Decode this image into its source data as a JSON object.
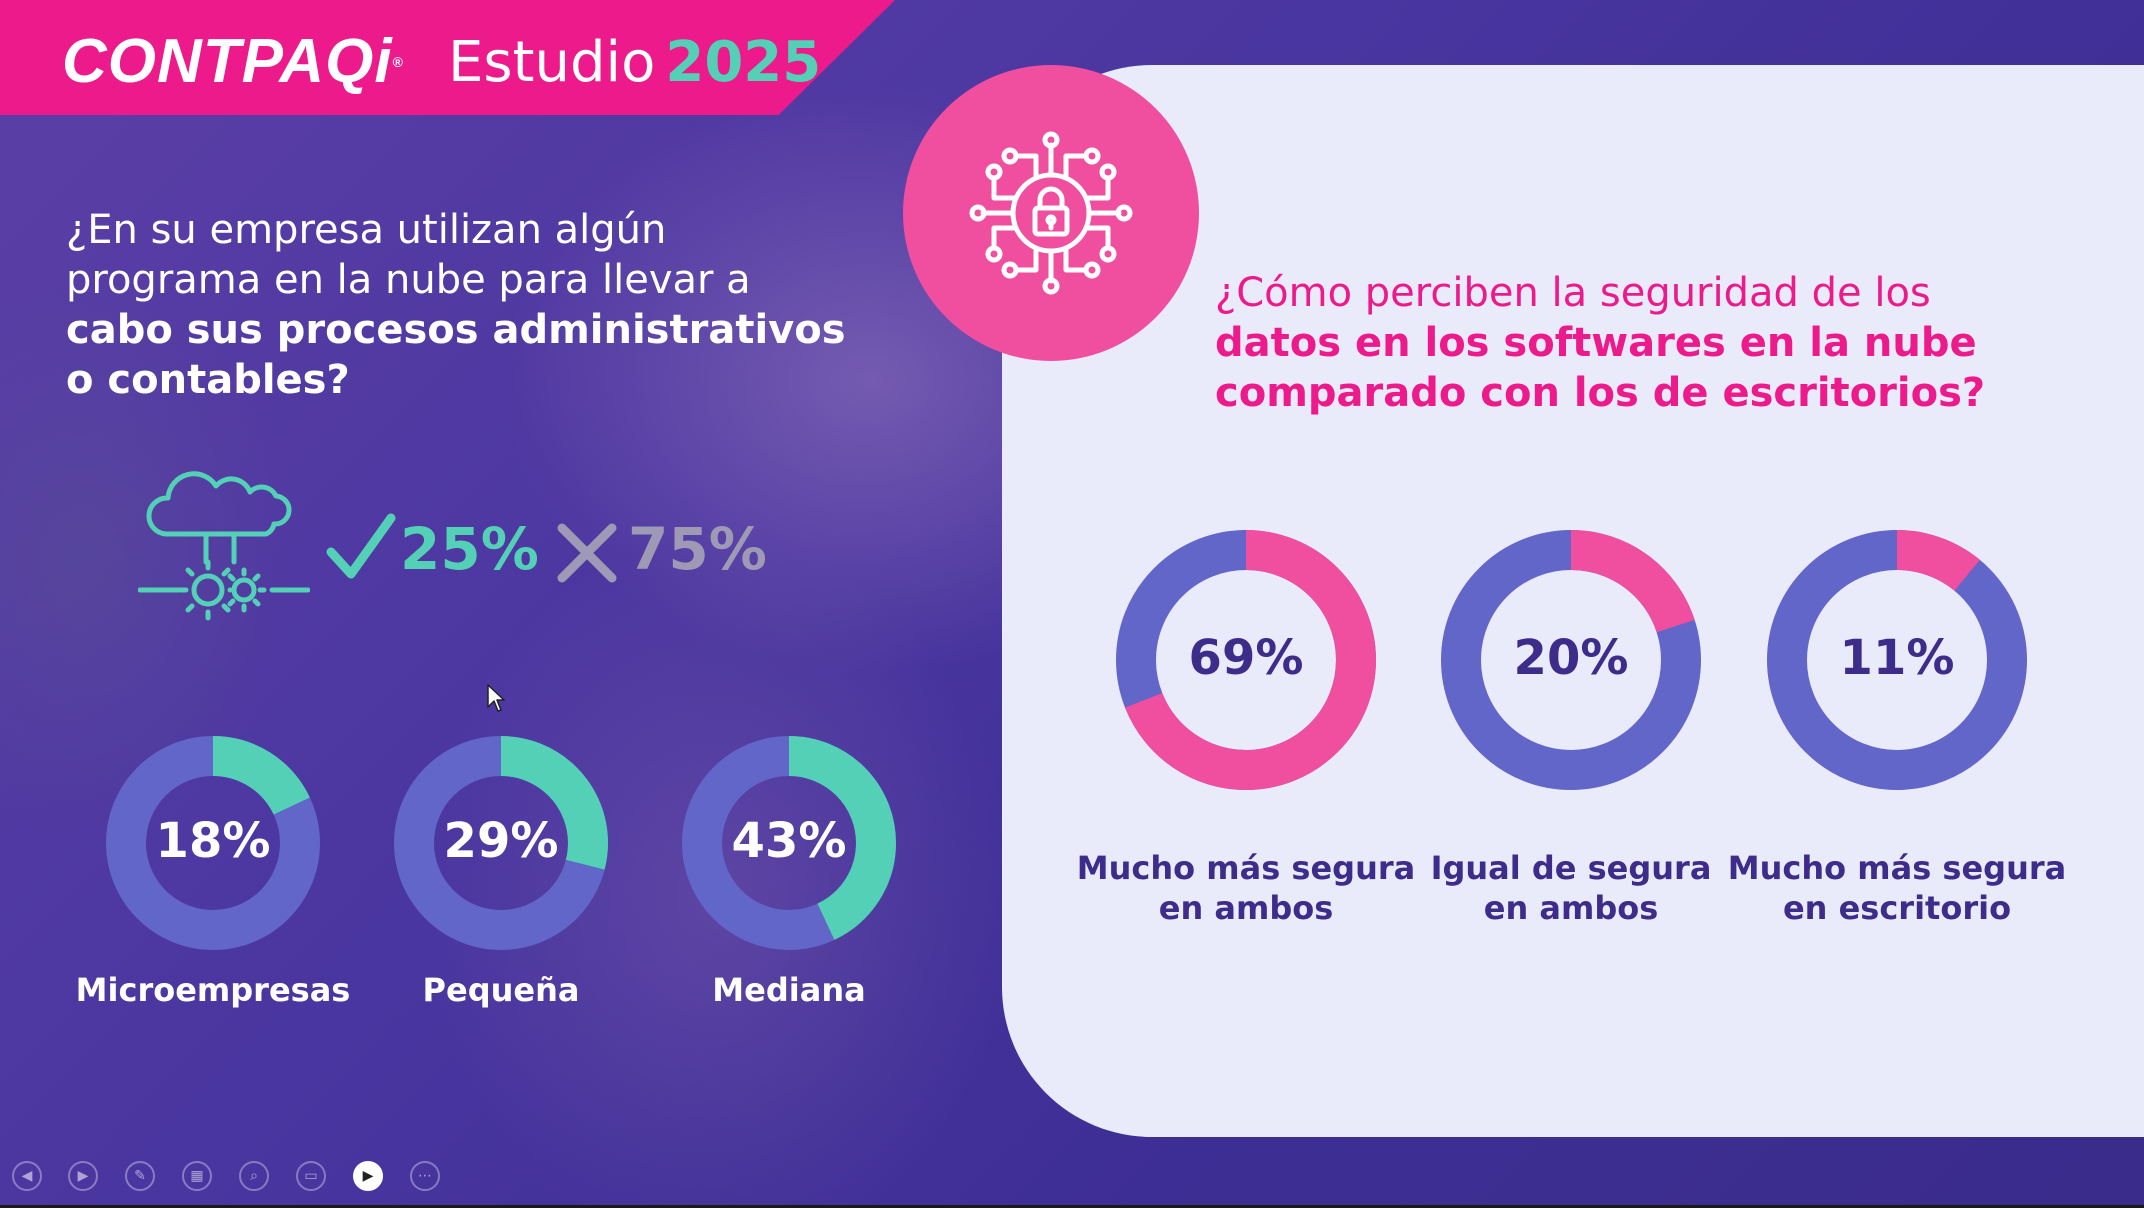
{
  "brand": {
    "logo_text": "CONTPAQi",
    "study_label": "Estudio",
    "year": "2025"
  },
  "left": {
    "question_line1": "¿En su empresa utilizan algún",
    "question_line2": "programa en la nube para llevar a",
    "question_bold1": "cabo sus procesos administrativos",
    "question_bold2": "o contables?",
    "yes_pct": "25%",
    "no_pct": "75%",
    "donuts": [
      {
        "label": "18%",
        "value": 18,
        "category": "Microempresas"
      },
      {
        "label": "29%",
        "value": 29,
        "category": "Pequeña"
      },
      {
        "label": "43%",
        "value": 43,
        "category": "Mediana"
      }
    ]
  },
  "right": {
    "question_line1": "¿Cómo perciben la seguridad de los",
    "question_bold1": "datos en los softwares en la nube",
    "question_bold2": "comparado con los de escritorios?",
    "donuts": [
      {
        "label": "69%",
        "value": 69,
        "caption1": "Mucho más segura",
        "caption2": "en ambos"
      },
      {
        "label": "20%",
        "value": 20,
        "caption1": "Igual de segura",
        "caption2": "en ambos"
      },
      {
        "label": "11%",
        "value": 11,
        "caption1": "Mucho más segura",
        "caption2": "en escritorio"
      }
    ]
  },
  "colors": {
    "pink": "#ec1a8a",
    "teal": "#53d0b5",
    "donut_base": "#6166c8",
    "donut_pink": "#ef4f9e",
    "dark_text": "#3d2c8a"
  },
  "toolbar": {
    "icons": [
      "previous-icon",
      "next-icon",
      "pen-icon",
      "slides-grid-icon",
      "zoom-icon",
      "subtitles-icon",
      "camera-icon",
      "more-options-icon"
    ]
  }
}
